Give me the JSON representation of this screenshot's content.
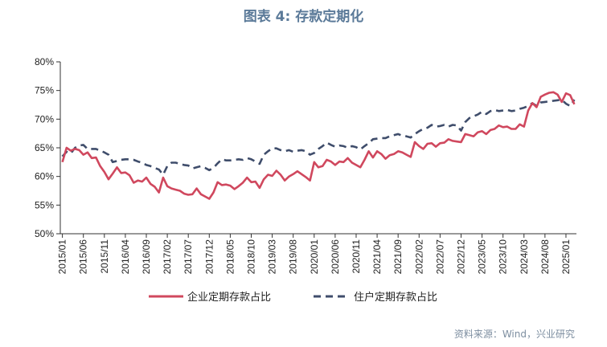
{
  "title": "图表 4:  存款定期化",
  "source": "资料来源：Wind，兴业研究",
  "colors": {
    "enterprise": "#d0485e",
    "household": "#3f4d6b",
    "title": "#5b7a99",
    "axis": "#333333"
  },
  "chart_data": {
    "type": "line",
    "title": "图表 4:  存款定期化",
    "xlabel": "",
    "ylabel": "",
    "ylim": [
      50,
      80
    ],
    "yticks": [
      "50%",
      "55%",
      "60%",
      "65%",
      "70%",
      "75%",
      "80%"
    ],
    "x_tick_labels": [
      "2015/01",
      "2015/06",
      "2015/11",
      "2016/04",
      "2016/09",
      "2017/02",
      "2017/07",
      "2017/12",
      "2018/05",
      "2018/10",
      "2019/03",
      "2019/08",
      "2020/01",
      "2020/06",
      "2020/11",
      "2021/04",
      "2021/09",
      "2022/02",
      "2022/07",
      "2022/12",
      "2023/05",
      "2023/10",
      "2024/03",
      "2024/08",
      "2025/01"
    ],
    "start": "2015/01",
    "grid": false,
    "legend_position": "bottom",
    "series": [
      {
        "name": "企业定期存款占比",
        "values": [
          62.5,
          65.0,
          64.5,
          64.8,
          64.6,
          63.8,
          64.2,
          63.2,
          63.3,
          61.8,
          60.8,
          59.5,
          60.5,
          61.6,
          60.6,
          60.7,
          60.2,
          58.9,
          59.3,
          59.1,
          59.8,
          58.7,
          58.2,
          57.2,
          59.8,
          58.3,
          57.9,
          57.7,
          57.5,
          57.0,
          56.8,
          56.9,
          57.9,
          56.9,
          56.5,
          56.1,
          57.2,
          59.0,
          58.5,
          58.6,
          58.4,
          57.8,
          58.3,
          58.9,
          59.8,
          59.0,
          59.1,
          58.0,
          59.5,
          60.3,
          60.1,
          61.0,
          60.3,
          59.3,
          60.0,
          60.4,
          60.9,
          60.4,
          59.9,
          59.3,
          62.5,
          61.6,
          61.8,
          62.9,
          62.6,
          62.0,
          62.6,
          62.5,
          63.2,
          62.4,
          62.0,
          61.6,
          62.9,
          64.4,
          63.3,
          64.4,
          63.9,
          63.1,
          63.7,
          63.9,
          64.4,
          64.2,
          63.8,
          63.4,
          66.0,
          65.3,
          64.8,
          65.7,
          65.8,
          65.2,
          65.8,
          65.9,
          66.5,
          66.2,
          66.1,
          66.0,
          67.4,
          67.2,
          67.0,
          67.7,
          67.9,
          67.4,
          68.1,
          68.3,
          68.9,
          68.6,
          68.7,
          68.3,
          68.3,
          69.1,
          68.7,
          71.5,
          72.8,
          72.1,
          73.9,
          74.3,
          74.6,
          74.7,
          74.3,
          73.0,
          74.5,
          74.2,
          72.6
        ]
      },
      {
        "name": "住户定期存款占比",
        "values": [
          63.5,
          64.3,
          64.0,
          65.0,
          65.4,
          65.5,
          64.8,
          64.8,
          64.8,
          64.5,
          64.2,
          63.8,
          62.5,
          62.7,
          62.9,
          63.0,
          63.0,
          62.9,
          62.6,
          62.4,
          62.0,
          61.8,
          61.5,
          61.2,
          60.3,
          61.8,
          62.4,
          62.4,
          62.2,
          62.0,
          61.9,
          61.4,
          61.6,
          61.8,
          61.5,
          61.1,
          61.5,
          62.3,
          63.0,
          62.8,
          62.8,
          62.9,
          63.0,
          62.9,
          63.2,
          63.0,
          62.6,
          62.2,
          63.8,
          64.4,
          64.9,
          64.9,
          64.6,
          64.4,
          64.6,
          64.3,
          64.5,
          64.6,
          64.4,
          63.8,
          64.1,
          64.8,
          65.3,
          65.9,
          65.5,
          65.2,
          65.4,
          65.3,
          65.0,
          65.3,
          65.1,
          64.7,
          65.3,
          65.8,
          66.5,
          66.6,
          66.7,
          66.7,
          67.0,
          67.2,
          67.4,
          67.1,
          67.0,
          66.8,
          67.4,
          67.9,
          68.3,
          68.5,
          69.0,
          68.7,
          68.8,
          69.0,
          68.7,
          69.0,
          68.9,
          68.0,
          69.5,
          70.2,
          70.5,
          70.8,
          71.3,
          70.9,
          71.4,
          71.6,
          71.4,
          71.5,
          71.6,
          71.4,
          71.5,
          71.8,
          72.0,
          72.3,
          72.8,
          72.3,
          72.9,
          73.0,
          73.1,
          73.2,
          73.3,
          73.4,
          72.7,
          72.3,
          73.4
        ]
      }
    ]
  }
}
